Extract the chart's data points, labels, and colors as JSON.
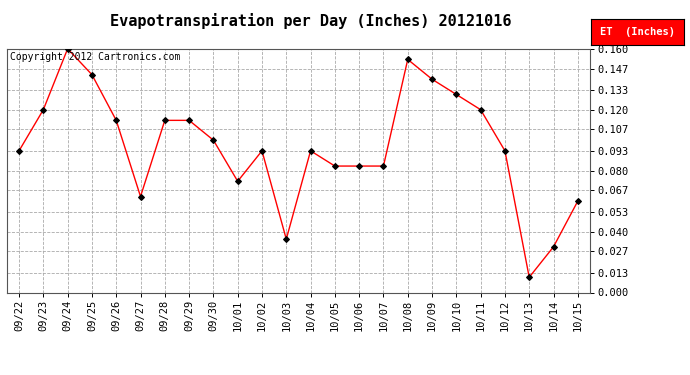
{
  "title": "Evapotranspiration per Day (Inches) 20121016",
  "copyright": "Copyright 2012 Cartronics.com",
  "legend_label": "ET  (Inches)",
  "legend_bg": "#FF0000",
  "legend_fg": "#FFFFFF",
  "x_labels": [
    "09/22",
    "09/23",
    "09/24",
    "09/25",
    "09/26",
    "09/27",
    "09/28",
    "09/29",
    "09/30",
    "10/01",
    "10/02",
    "10/03",
    "10/04",
    "10/05",
    "10/06",
    "10/07",
    "10/08",
    "10/09",
    "10/10",
    "10/11",
    "10/12",
    "10/13",
    "10/14",
    "10/15"
  ],
  "y_values": [
    0.093,
    0.12,
    0.16,
    0.143,
    0.113,
    0.063,
    0.113,
    0.113,
    0.1,
    0.073,
    0.093,
    0.035,
    0.093,
    0.083,
    0.083,
    0.083,
    0.153,
    0.14,
    0.13,
    0.12,
    0.093,
    0.01,
    0.03,
    0.06
  ],
  "y_ticks": [
    0.0,
    0.013,
    0.027,
    0.04,
    0.053,
    0.067,
    0.08,
    0.093,
    0.107,
    0.12,
    0.133,
    0.147,
    0.16
  ],
  "line_color": "#FF0000",
  "marker_color": "#000000",
  "bg_color": "#FFFFFF",
  "grid_color": "#AAAAAA",
  "ylim": [
    0.0,
    0.16
  ],
  "title_fontsize": 11,
  "copyright_fontsize": 7,
  "tick_fontsize": 7.5,
  "legend_fontsize": 7.5
}
